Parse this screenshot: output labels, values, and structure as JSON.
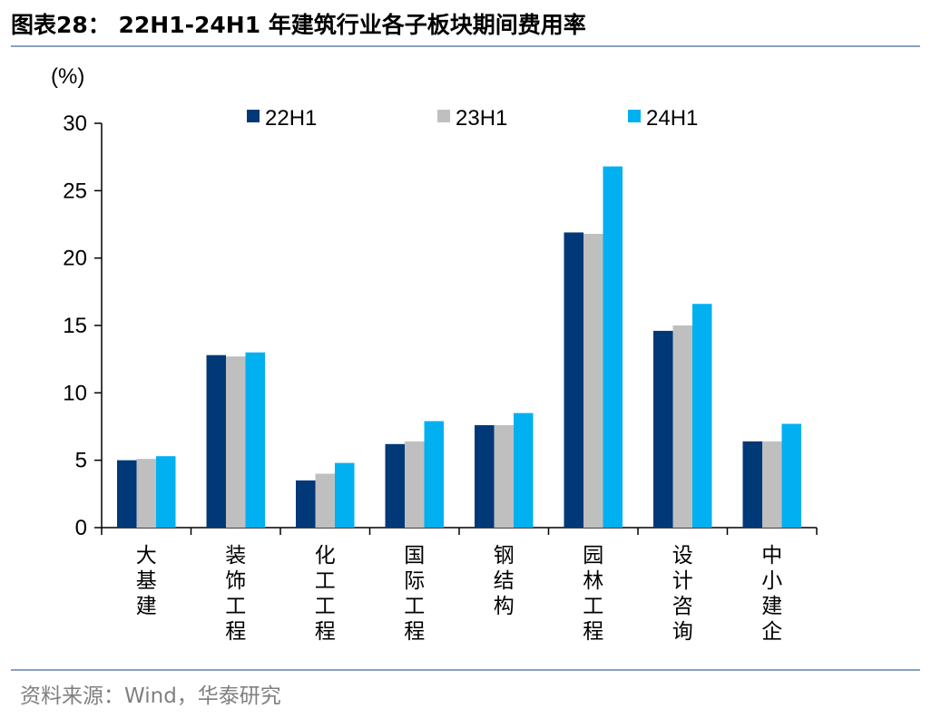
{
  "header": {
    "title": "图表28： 22H1-24H1 年建筑行业各子板块期间费用率"
  },
  "footer": {
    "source": "资料来源：Wind，华泰研究"
  },
  "chart_data": {
    "type": "bar",
    "unit": "(%)",
    "categories": [
      "大基建",
      "装饰工程",
      "化工工程",
      "国际工程",
      "钢结构",
      "园林工程",
      "设计咨询",
      "中小建企"
    ],
    "series": [
      {
        "name": "22H1",
        "color": "#003878",
        "values": [
          5.0,
          12.8,
          3.5,
          6.2,
          7.6,
          21.9,
          14.6,
          6.4
        ]
      },
      {
        "name": "23H1",
        "color": "#bfbfbf",
        "values": [
          5.1,
          12.7,
          4.0,
          6.4,
          7.6,
          21.8,
          15.0,
          6.4
        ]
      },
      {
        "name": "24H1",
        "color": "#00b0f0",
        "values": [
          5.3,
          13.0,
          4.8,
          7.9,
          8.5,
          26.8,
          16.6,
          7.7
        ]
      }
    ],
    "ylim": [
      0,
      30
    ],
    "yticks": [
      0,
      5,
      10,
      15,
      20,
      25,
      30
    ],
    "legend": "top",
    "grid": false
  }
}
